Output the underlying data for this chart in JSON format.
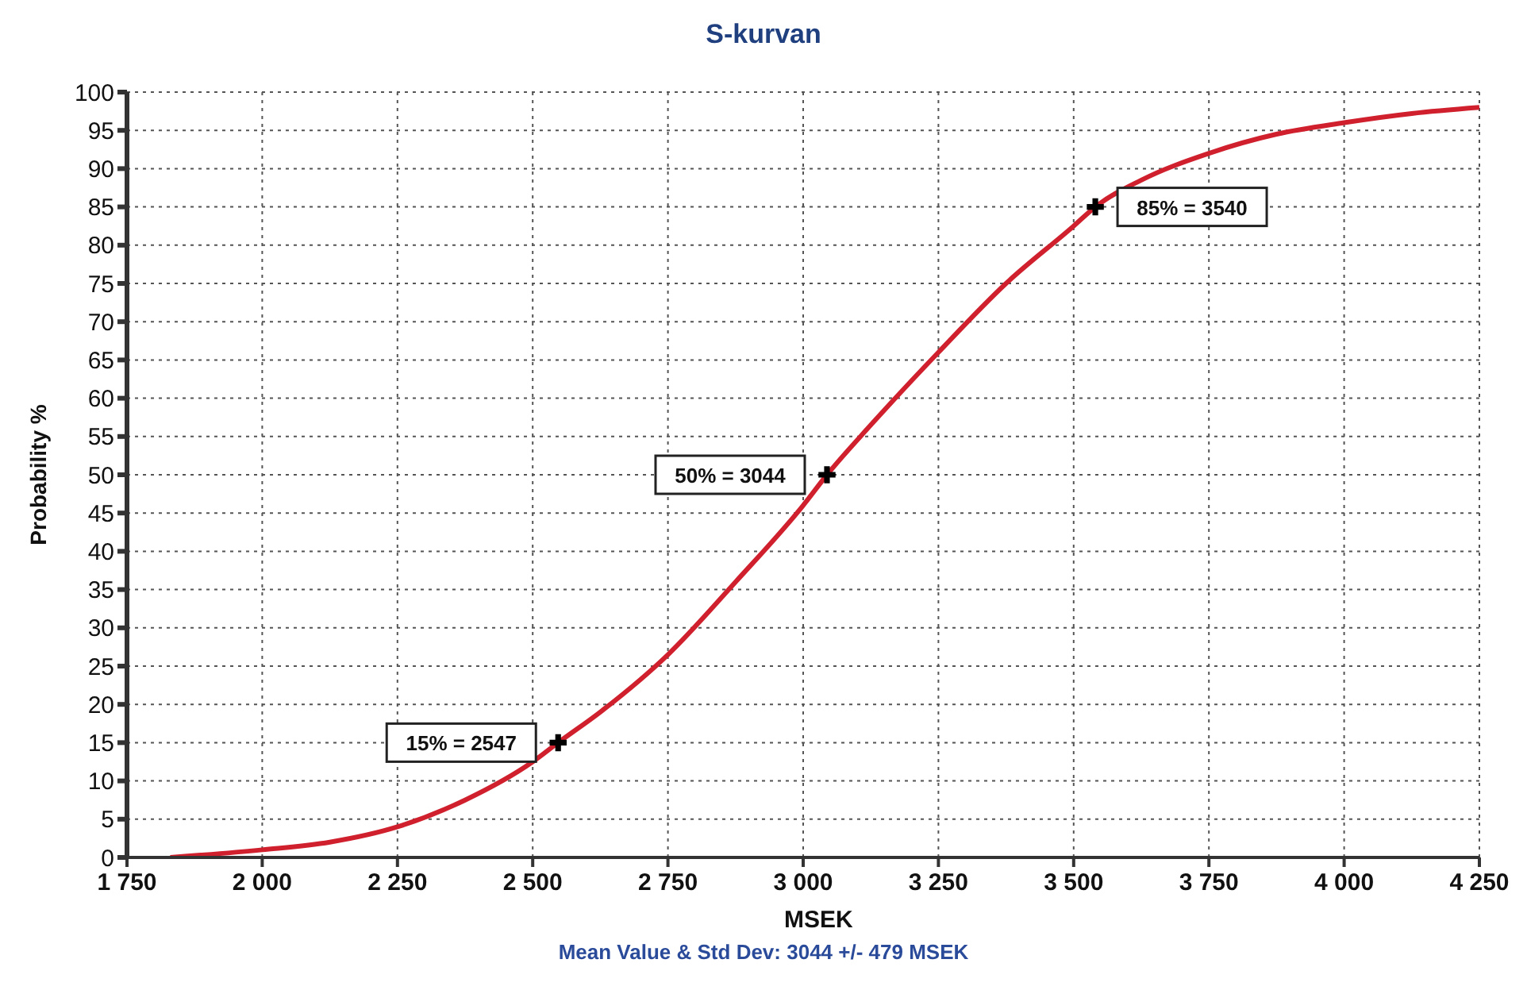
{
  "chart_data": {
    "type": "line",
    "title": "S-kurvan",
    "xlabel": "MSEK",
    "ylabel": "Probability %",
    "xlim": [
      1750,
      4250
    ],
    "xticks": [
      {
        "value": 1750,
        "label": "1 750"
      },
      {
        "value": 2000,
        "label": "2 000"
      },
      {
        "value": 2250,
        "label": "2 250"
      },
      {
        "value": 2500,
        "label": "2 500"
      },
      {
        "value": 2750,
        "label": "2 750"
      },
      {
        "value": 3000,
        "label": "3 000"
      },
      {
        "value": 3250,
        "label": "3 250"
      },
      {
        "value": 3500,
        "label": "3 500"
      },
      {
        "value": 3750,
        "label": "3 750"
      },
      {
        "value": 4000,
        "label": "4 000"
      },
      {
        "value": 4250,
        "label": "4 250"
      }
    ],
    "ylim": [
      0,
      100
    ],
    "yticks": [
      0,
      5,
      10,
      15,
      20,
      25,
      30,
      35,
      40,
      45,
      50,
      55,
      60,
      65,
      70,
      75,
      80,
      85,
      90,
      95,
      100
    ],
    "grid": true,
    "legend": false,
    "line_style": "solid",
    "series": [
      {
        "type": "line",
        "color": "#d0202e",
        "marker": "none",
        "x": [
          1830,
          2000,
          2125,
          2250,
          2375,
          2500,
          2547,
          2625,
          2750,
          2875,
          3000,
          3044,
          3125,
          3250,
          3375,
          3500,
          3540,
          3625,
          3750,
          3875,
          4000,
          4125,
          4250
        ],
        "values": [
          0,
          1,
          2,
          4,
          7.5,
          12.5,
          15,
          19,
          26.5,
          36,
          46,
          50,
          56.5,
          66,
          75,
          82.5,
          85,
          88.5,
          92,
          94.5,
          96,
          97.2,
          98
        ]
      },
      {
        "type": "scatter",
        "color": "#000000",
        "marker": "cross",
        "x": [
          2547,
          3044,
          3540
        ],
        "values": [
          15,
          50,
          85
        ]
      }
    ],
    "annotations": [
      {
        "text": "15% = 2547",
        "x": 2547,
        "y": 15
      },
      {
        "text": "50% = 3044",
        "x": 3044,
        "y": 50
      },
      {
        "text": "85% = 3540",
        "x": 3540,
        "y": 85
      },
      "Mean Value & Std Dev: 3044 +/- 479 MSEK"
    ]
  }
}
